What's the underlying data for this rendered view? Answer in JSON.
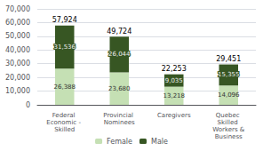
{
  "chart_data": {
    "type": "bar",
    "stacked": true,
    "data_labels": true,
    "grid": true,
    "legend": "bottom",
    "categories": [
      "Federal Economic - Skilled",
      "Provincial Nominees",
      "Caregivers",
      "Quebec Skilled Workers &\nBusiness"
    ],
    "series": [
      {
        "name": "Female",
        "color": "#c5e0b4",
        "values": [
          26388,
          23680,
          13218,
          14096
        ],
        "value_labels": [
          "26,388",
          "23,680",
          "13,218",
          "14,096"
        ]
      },
      {
        "name": "Male",
        "color": "#375623",
        "values": [
          31536,
          26044,
          9035,
          15355
        ],
        "value_labels": [
          "31,536",
          "26,044",
          "9,035",
          "15,355"
        ]
      }
    ],
    "totals": [
      57924,
      49724,
      22253,
      29451
    ],
    "total_labels": [
      "57,924",
      "49,724",
      "22,253",
      "29,451"
    ],
    "ylim": [
      0,
      70000
    ],
    "yticks": [
      {
        "value": 0,
        "label": "0"
      },
      {
        "value": 10000,
        "label": "10,000"
      },
      {
        "value": 20000,
        "label": "20,000"
      },
      {
        "value": 30000,
        "label": "30,000"
      },
      {
        "value": 40000,
        "label": "40,000"
      },
      {
        "value": 50000,
        "label": "50,000"
      },
      {
        "value": 60000,
        "label": "60,000"
      },
      {
        "value": 70000,
        "label": "70,000"
      }
    ]
  }
}
